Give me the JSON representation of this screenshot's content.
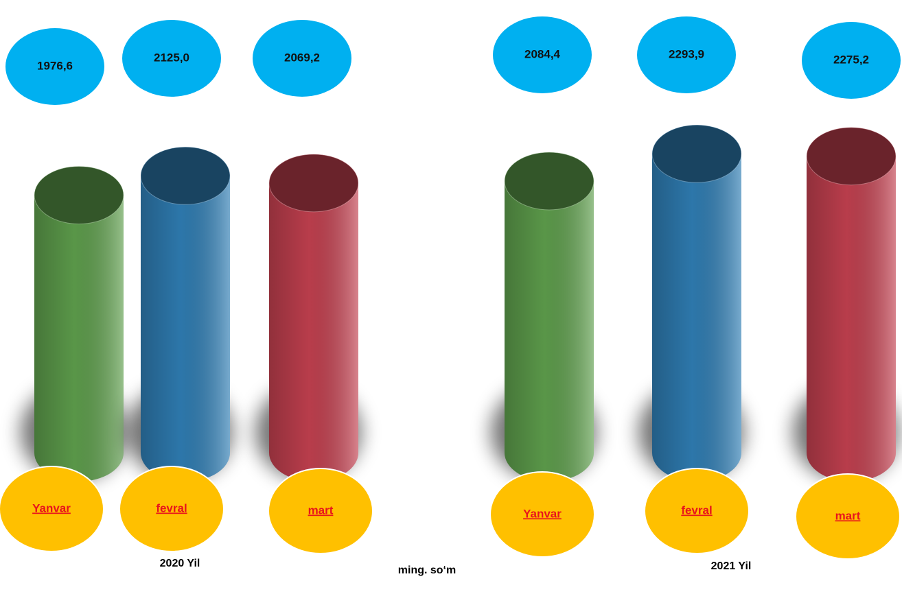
{
  "chart_data": [
    {
      "type": "cylinder",
      "title": "2020 Yil",
      "categories": [
        "Yanvar",
        "fevral",
        "mart"
      ],
      "values": [
        1976.6,
        2125.0,
        2069.2
      ],
      "value_labels": [
        "1976,6",
        "2125,0",
        "2069,2"
      ],
      "colors": [
        "#5e9e4c",
        "#2f7db3",
        "#c2404f"
      ]
    },
    {
      "type": "cylinder",
      "title": "2021 Yil",
      "categories": [
        "Yanvar",
        "fevral",
        "mart"
      ],
      "values": [
        2084.4,
        2293.9,
        2275.2
      ],
      "value_labels": [
        "2084,4",
        "2293,9",
        "2275,2"
      ],
      "colors": [
        "#5e9e4c",
        "#2f7db3",
        "#c2404f"
      ]
    }
  ],
  "unit_label": "ming. so‘m"
}
